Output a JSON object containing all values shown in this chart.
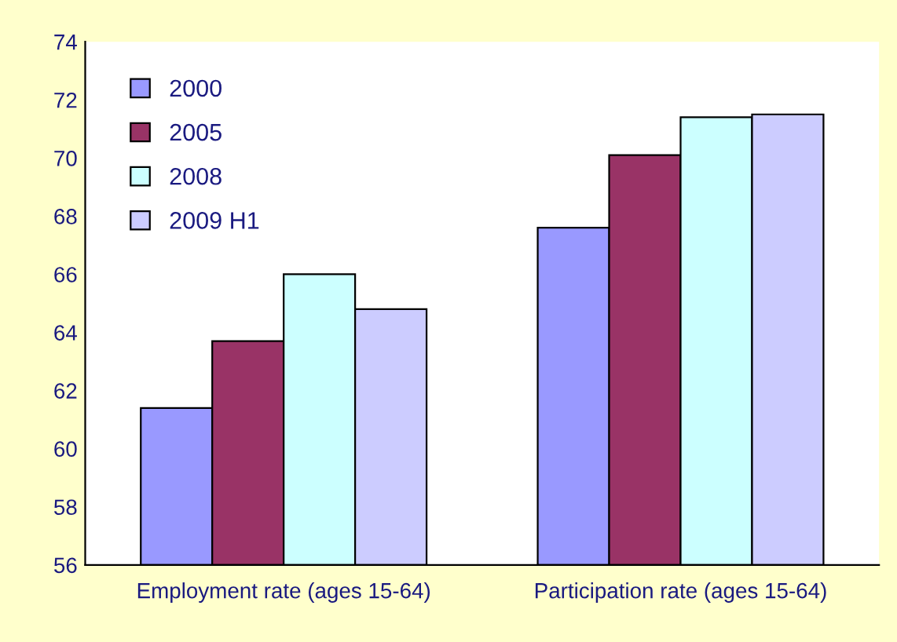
{
  "chart_data": {
    "type": "bar",
    "categories": [
      "Employment rate (ages 15-64)",
      "Participation rate (ages 15-64)"
    ],
    "series": [
      {
        "name": "2000",
        "color": "#9999ff",
        "values": [
          61.4,
          67.6
        ]
      },
      {
        "name": "2005",
        "color": "#993366",
        "values": [
          63.7,
          70.1
        ]
      },
      {
        "name": "2008",
        "color": "#ccffff",
        "values": [
          66.0,
          71.4
        ]
      },
      {
        "name": "2009 H1",
        "color": "#ccccff",
        "values": [
          64.8,
          71.5
        ]
      }
    ],
    "ylim": [
      56,
      74
    ],
    "yticks": [
      56,
      58,
      60,
      62,
      64,
      66,
      68,
      70,
      72,
      74
    ],
    "grid": false,
    "legend": "top left"
  }
}
